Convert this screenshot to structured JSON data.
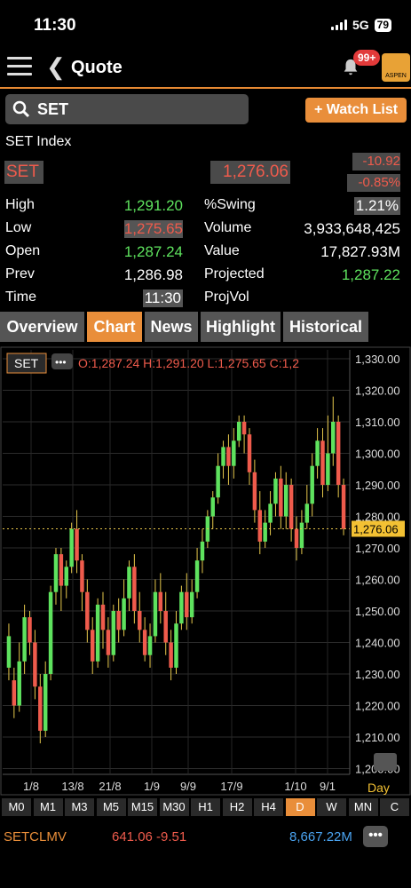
{
  "status": {
    "time": "11:30",
    "network": "5G",
    "battery": "79"
  },
  "header": {
    "title": "Quote",
    "notification_badge": "99+",
    "logo_text": "ASPEN"
  },
  "search": {
    "value": "SET"
  },
  "watch_list_label": "+ Watch List",
  "index_name": "SET Index",
  "symbol": "SET",
  "last_price": "1,276.06",
  "change": "-10.92",
  "change_pct": "-0.85%",
  "stats_left": [
    {
      "label": "High",
      "value": "1,291.20",
      "color": "green"
    },
    {
      "label": "Low",
      "value": "1,275.65",
      "color": "red"
    },
    {
      "label": "Open",
      "value": "1,287.24",
      "color": "green"
    },
    {
      "label": "Prev",
      "value": "1,286.98",
      "color": "white"
    },
    {
      "label": "Time",
      "value": "11:30",
      "color": "white"
    }
  ],
  "stats_right": [
    {
      "label": "%Swing",
      "value": "1.21%",
      "color": "white"
    },
    {
      "label": "Volume",
      "value": "3,933,648,425",
      "color": "white"
    },
    {
      "label": "Value",
      "value": "17,827.93M",
      "color": "white"
    },
    {
      "label": "Projected",
      "value": "1,287.22",
      "color": "green"
    },
    {
      "label": "ProjVol",
      "value": "",
      "color": "white"
    }
  ],
  "tabs": [
    "Overview",
    "Chart",
    "News",
    "Highlight",
    "Historical"
  ],
  "active_tab": "Chart",
  "chart_header": {
    "symbol": "SET",
    "menu": "•••",
    "ohlc": "O:1,287.24 H:1,291.20 L:1,275.65 C:1,2"
  },
  "chart_data": {
    "type": "candlestick",
    "y_ticks": [
      "1,330.00",
      "1,320.00",
      "1,310.00",
      "1,300.00",
      "1,290.00",
      "1,280.00",
      "1,270.00",
      "1,260.00",
      "1,250.00",
      "1,240.00",
      "1,230.00",
      "1,220.00",
      "1,210.00",
      "1,200.00"
    ],
    "ylim": [
      1200,
      1330
    ],
    "x_ticks": [
      "1/8",
      "13/8",
      "21/8",
      "1/9",
      "9/9",
      "17/9",
      "1/10",
      "9/1"
    ],
    "last_price_label": "1,276.06",
    "period_label": "Day",
    "candles": [
      [
        1232,
        1242,
        1228,
        1246
      ],
      [
        1228,
        1220,
        1216,
        1232
      ],
      [
        1220,
        1234,
        1218,
        1240
      ],
      [
        1234,
        1248,
        1230,
        1252
      ],
      [
        1248,
        1240,
        1236,
        1250
      ],
      [
        1240,
        1226,
        1222,
        1244
      ],
      [
        1226,
        1212,
        1208,
        1230
      ],
      [
        1212,
        1230,
        1210,
        1234
      ],
      [
        1230,
        1256,
        1228,
        1258
      ],
      [
        1256,
        1268,
        1252,
        1270
      ],
      [
        1268,
        1258,
        1250,
        1270
      ],
      [
        1258,
        1264,
        1254,
        1266
      ],
      [
        1264,
        1276,
        1262,
        1278
      ],
      [
        1276,
        1266,
        1262,
        1282
      ],
      [
        1266,
        1256,
        1250,
        1268
      ],
      [
        1256,
        1244,
        1240,
        1260
      ],
      [
        1244,
        1234,
        1230,
        1248
      ],
      [
        1234,
        1252,
        1232,
        1254
      ],
      [
        1252,
        1244,
        1238,
        1256
      ],
      [
        1244,
        1236,
        1232,
        1248
      ],
      [
        1236,
        1250,
        1234,
        1252
      ],
      [
        1250,
        1244,
        1240,
        1254
      ],
      [
        1244,
        1254,
        1242,
        1260
      ],
      [
        1254,
        1264,
        1250,
        1266
      ],
      [
        1264,
        1250,
        1246,
        1268
      ],
      [
        1250,
        1244,
        1240,
        1256
      ],
      [
        1244,
        1236,
        1234,
        1248
      ],
      [
        1236,
        1242,
        1232,
        1246
      ],
      [
        1242,
        1256,
        1240,
        1260
      ],
      [
        1256,
        1250,
        1246,
        1262
      ],
      [
        1250,
        1240,
        1236,
        1256
      ],
      [
        1240,
        1232,
        1228,
        1244
      ],
      [
        1232,
        1246,
        1230,
        1250
      ],
      [
        1246,
        1256,
        1244,
        1258
      ],
      [
        1256,
        1248,
        1244,
        1262
      ],
      [
        1248,
        1256,
        1246,
        1260
      ],
      [
        1256,
        1266,
        1254,
        1270
      ],
      [
        1266,
        1272,
        1262,
        1276
      ],
      [
        1272,
        1280,
        1270,
        1282
      ],
      [
        1280,
        1286,
        1276,
        1288
      ],
      [
        1286,
        1296,
        1284,
        1300
      ],
      [
        1296,
        1302,
        1292,
        1304
      ],
      [
        1302,
        1296,
        1290,
        1306
      ],
      [
        1296,
        1304,
        1292,
        1308
      ],
      [
        1304,
        1310,
        1302,
        1312
      ],
      [
        1310,
        1306,
        1300,
        1312
      ],
      [
        1306,
        1294,
        1290,
        1308
      ],
      [
        1294,
        1282,
        1278,
        1298
      ],
      [
        1282,
        1272,
        1268,
        1288
      ],
      [
        1272,
        1278,
        1270,
        1282
      ],
      [
        1278,
        1284,
        1274,
        1288
      ],
      [
        1284,
        1292,
        1280,
        1294
      ],
      [
        1292,
        1280,
        1276,
        1296
      ],
      [
        1280,
        1290,
        1276,
        1294
      ],
      [
        1290,
        1276,
        1272,
        1292
      ],
      [
        1276,
        1270,
        1266,
        1280
      ],
      [
        1270,
        1278,
        1268,
        1282
      ],
      [
        1278,
        1284,
        1276,
        1290
      ],
      [
        1284,
        1296,
        1280,
        1300
      ],
      [
        1296,
        1304,
        1292,
        1308
      ],
      [
        1304,
        1290,
        1286,
        1308
      ],
      [
        1290,
        1300,
        1288,
        1312
      ],
      [
        1300,
        1310,
        1296,
        1318
      ],
      [
        1310,
        1290,
        1286,
        1312
      ],
      [
        1290,
        1276,
        1274,
        1292
      ]
    ]
  },
  "timeframes": [
    "M0",
    "M1",
    "M3",
    "M5",
    "M15",
    "M30",
    "H1",
    "H2",
    "H4",
    "D",
    "W",
    "MN",
    "C"
  ],
  "active_timeframe": "D",
  "bottom_ticker": {
    "name": "SETCLMV",
    "value": "641.06 -9.51",
    "volume": "8,667.22M",
    "menu": "•••"
  },
  "colors": {
    "accent": "#e98e3a",
    "up": "#5ee25e",
    "down": "#ef5b4c",
    "bg": "#000000"
  }
}
